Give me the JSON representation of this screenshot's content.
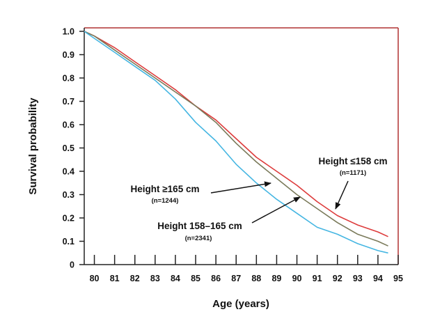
{
  "chart_data": {
    "type": "line",
    "title": "",
    "xlabel": "Age (years)",
    "ylabel": "Survival probability",
    "xlim": [
      79.5,
      95
    ],
    "ylim": [
      0,
      1.0
    ],
    "x_ticks": [
      80,
      81,
      82,
      83,
      84,
      85,
      86,
      87,
      88,
      89,
      90,
      91,
      92,
      93,
      94,
      95
    ],
    "y_ticks": [
      "0",
      "0.1",
      "0.2",
      "0.3",
      "0.4",
      "0.5",
      "0.6",
      "0.7",
      "0.8",
      "0.9",
      "1.0"
    ],
    "grid": false,
    "colors": {
      "frame": "#b03030",
      "axis": "#222222"
    },
    "series": [
      {
        "name": "Height ≤158 cm",
        "n_label": "(n=1171)",
        "color": "#dd3b3b",
        "x": [
          79.5,
          80,
          81,
          82,
          83,
          84,
          85,
          86,
          87,
          88,
          89,
          90,
          91,
          92,
          93,
          94,
          94.5
        ],
        "y": [
          1.0,
          0.98,
          0.93,
          0.87,
          0.81,
          0.75,
          0.68,
          0.62,
          0.54,
          0.46,
          0.4,
          0.34,
          0.27,
          0.21,
          0.17,
          0.14,
          0.12
        ]
      },
      {
        "name": "Height 158–165 cm",
        "n_label": "(n=2341)",
        "color": "#7a7a5a",
        "x": [
          79.5,
          80,
          81,
          82,
          83,
          84,
          85,
          86,
          87,
          88,
          89,
          90,
          91,
          92,
          93,
          94,
          94.5
        ],
        "y": [
          1.0,
          0.98,
          0.92,
          0.86,
          0.8,
          0.74,
          0.68,
          0.61,
          0.52,
          0.44,
          0.37,
          0.3,
          0.24,
          0.18,
          0.13,
          0.1,
          0.08
        ]
      },
      {
        "name": "Height ≥165 cm",
        "n_label": "(n=1244)",
        "color": "#45b6e2",
        "x": [
          79.5,
          80,
          81,
          82,
          83,
          84,
          85,
          86,
          87,
          88,
          89,
          90,
          91,
          92,
          93,
          94,
          94.5
        ],
        "y": [
          1.0,
          0.97,
          0.91,
          0.85,
          0.79,
          0.71,
          0.61,
          0.53,
          0.43,
          0.35,
          0.28,
          0.22,
          0.16,
          0.13,
          0.09,
          0.06,
          0.05
        ]
      }
    ],
    "annotations": [
      {
        "text": "Height ≤158 cm",
        "sub": "(n=1171)"
      },
      {
        "text": "Height ≥165 cm",
        "sub": "(n=1244)"
      },
      {
        "text": "Height 158–165 cm",
        "sub": "(n=2341)"
      }
    ]
  }
}
